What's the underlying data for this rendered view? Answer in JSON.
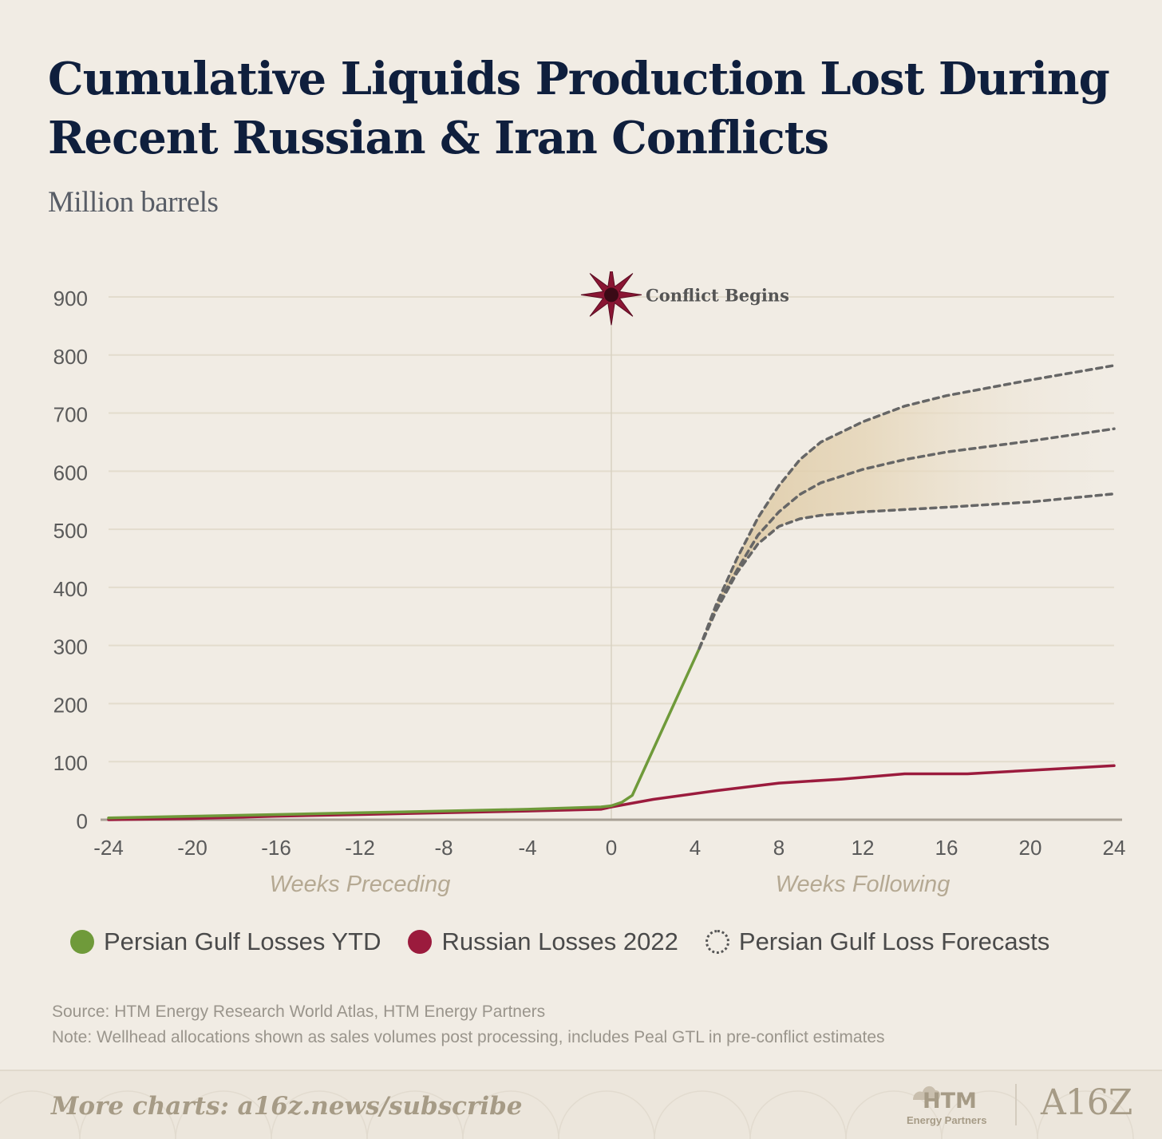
{
  "header": {
    "title": "Cumulative Liquids Production Lost During Recent Russian & Iran Conflicts",
    "subtitle": "Million barrels"
  },
  "chart_data": {
    "type": "line",
    "title": "Cumulative Liquids Production Lost During Recent Russian & Iran Conflicts",
    "ylabel": "Million barrels",
    "xlim": [
      -24,
      24
    ],
    "ylim": [
      0,
      900
    ],
    "x_ticks": [
      -24,
      -20,
      -16,
      -12,
      -8,
      -4,
      0,
      4,
      8,
      12,
      16,
      20,
      24
    ],
    "y_ticks": [
      0,
      100,
      200,
      300,
      400,
      500,
      600,
      700,
      800,
      900
    ],
    "x_group_labels": [
      "Weeks Preceding",
      "Weeks Following"
    ],
    "grid": "horizontal",
    "annotation": {
      "text": "Conflict Begins",
      "x": 0,
      "y": 850
    },
    "series": [
      {
        "name": "Persian Gulf Losses YTD",
        "style": "solid",
        "color": "#6f9a3a",
        "points": [
          [
            -24,
            3
          ],
          [
            -20,
            6
          ],
          [
            -16,
            9
          ],
          [
            -12,
            12
          ],
          [
            -8,
            15
          ],
          [
            -4,
            18
          ],
          [
            -0.5,
            22
          ],
          [
            0,
            24
          ],
          [
            0.5,
            30
          ],
          [
            1,
            42
          ],
          [
            4.2,
            295
          ]
        ]
      },
      {
        "name": "Russian Losses 2022",
        "style": "solid",
        "color": "#9b1b3d",
        "points": [
          [
            -24,
            0
          ],
          [
            -20,
            2
          ],
          [
            -16,
            6
          ],
          [
            -12,
            9
          ],
          [
            -8,
            12
          ],
          [
            -4,
            15
          ],
          [
            -0.5,
            18
          ],
          [
            0,
            22
          ],
          [
            2,
            35
          ],
          [
            5,
            50
          ],
          [
            8,
            63
          ],
          [
            11,
            70
          ],
          [
            14,
            79
          ],
          [
            17,
            79
          ],
          [
            20,
            85
          ],
          [
            24,
            93
          ]
        ]
      },
      {
        "name": "Persian Gulf Loss Forecasts",
        "style": "dotted",
        "color": "#666666",
        "lines": [
          [
            [
              4.2,
              295
            ],
            [
              5,
              370
            ],
            [
              6,
              450
            ],
            [
              7,
              520
            ],
            [
              8,
              575
            ],
            [
              9,
              620
            ],
            [
              10,
              650
            ],
            [
              12,
              685
            ],
            [
              14,
              712
            ],
            [
              16,
              730
            ],
            [
              20,
              757
            ],
            [
              24,
              782
            ]
          ],
          [
            [
              4.2,
              295
            ],
            [
              5,
              365
            ],
            [
              6,
              430
            ],
            [
              7,
              490
            ],
            [
              8,
              530
            ],
            [
              9,
              560
            ],
            [
              10,
              580
            ],
            [
              12,
              603
            ],
            [
              14,
              620
            ],
            [
              16,
              633
            ],
            [
              20,
              652
            ],
            [
              24,
              673
            ]
          ],
          [
            [
              4.2,
              295
            ],
            [
              5,
              360
            ],
            [
              6,
              425
            ],
            [
              7,
              475
            ],
            [
              8,
              505
            ],
            [
              9,
              518
            ],
            [
              10,
              524
            ],
            [
              12,
              530
            ],
            [
              14,
              534
            ],
            [
              16,
              538
            ],
            [
              20,
              547
            ],
            [
              24,
              561
            ]
          ]
        ]
      }
    ],
    "legend": [
      {
        "label": "Persian Gulf Losses YTD",
        "color": "#6f9a3a",
        "style": "filled"
      },
      {
        "label": "Russian Losses 2022",
        "color": "#9b1b3d",
        "style": "filled"
      },
      {
        "label": "Persian Gulf Loss Forecasts",
        "color": "#666666",
        "style": "dashed"
      }
    ],
    "legend_position": "bottom"
  },
  "notes": {
    "source": "Source: HTM Energy Research World Atlas, HTM Energy Partners",
    "note": "Note: Wellhead allocations shown as sales volumes post processing, includes Peal GTL in pre-conflict estimates"
  },
  "footer": {
    "cta": "More charts: a16z.news/subscribe",
    "htm_logo": "HTM",
    "htm_sub": "Energy Partners",
    "a16z_logo": "A16Z"
  },
  "colors": {
    "background": "#f1ece4",
    "title": "#0f1f3d",
    "grid": "#e3dccd",
    "band": "#e2d0ac"
  }
}
